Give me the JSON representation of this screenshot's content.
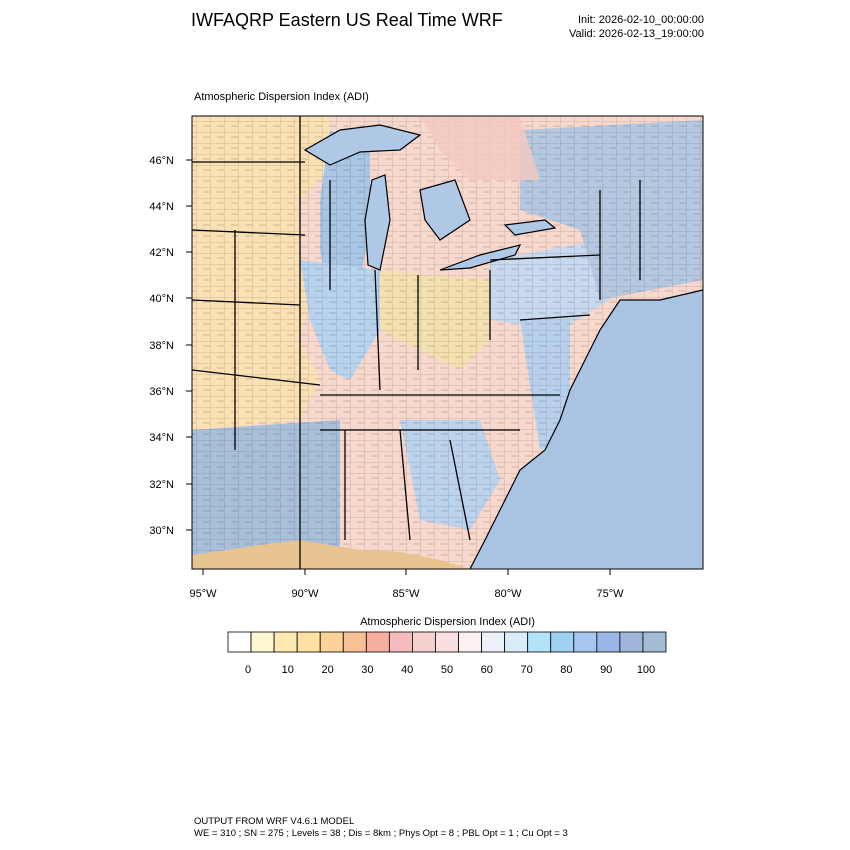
{
  "header": {
    "title": "IWFAQRP Eastern US Real Time WRF",
    "init": "Init: 2026-02-10_00:00:00",
    "valid": "Valid: 2026-02-13_19:00:00"
  },
  "panel": {
    "title": "Atmospheric Dispersion Index   (ADI)"
  },
  "map": {
    "lat_labels": [
      "46°N",
      "44°N",
      "42°N",
      "40°N",
      "38°N",
      "36°N",
      "34°N",
      "32°N",
      "30°N"
    ],
    "lon_labels": [
      "95°W",
      "90°W",
      "85°W",
      "80°W",
      "75°W"
    ],
    "water_color": "#aec8e6",
    "ocean_color": "#a9c4e2",
    "boundary_color": "#000000"
  },
  "colorbar": {
    "title": "Atmospheric Dispersion Index  (ADI)",
    "colors": [
      "#ffffff",
      "#fff6d2",
      "#fde9b0",
      "#fde0a2",
      "#fbd398",
      "#f7c195",
      "#f5ad9e",
      "#f4bcbc",
      "#f6cfcf",
      "#f8e0e0",
      "#fdf2f2",
      "#ecf1fb",
      "#d8ecfa",
      "#b4e2f9",
      "#9fd2f2",
      "#a7c6ee",
      "#9ab6e6",
      "#9fb6da",
      "#a4bbd4"
    ],
    "ticks": [
      "0",
      "10",
      "20",
      "30",
      "40",
      "50",
      "60",
      "70",
      "80",
      "90",
      "100"
    ]
  },
  "footer": {
    "line1": "OUTPUT FROM WRF V4.6.1 MODEL",
    "line2": "WE = 310 ; SN = 275 ; Levels = 38 ; Dis = 8km ; Phys Opt = 8 ; PBL Opt = 1 ; Cu Opt = 3"
  }
}
